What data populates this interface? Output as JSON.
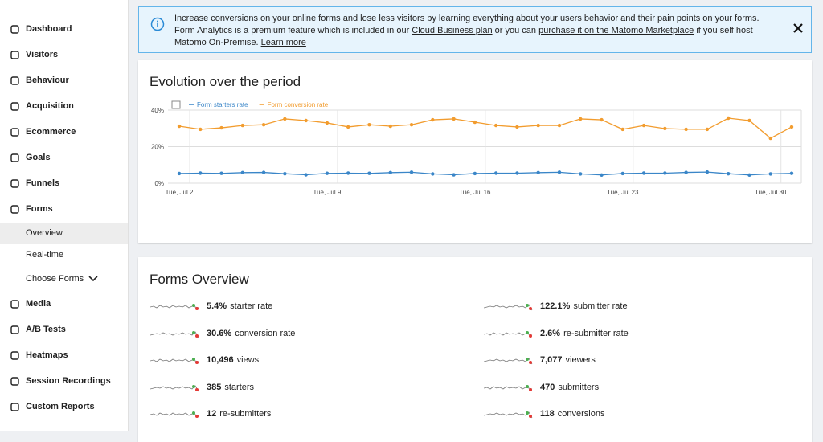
{
  "sidebar": {
    "items": [
      "Dashboard",
      "Visitors",
      "Behaviour",
      "Acquisition",
      "Ecommerce",
      "Goals",
      "Funnels",
      "Forms"
    ],
    "sub_items": [
      "Overview",
      "Real-time",
      "Choose Forms"
    ],
    "items_after": [
      "Media",
      "A/B Tests",
      "Heatmaps",
      "Session Recordings",
      "Custom Reports"
    ]
  },
  "notice": {
    "parts": [
      {
        "text": "Increase conversions on your online forms and lose less visitors by learning everything about your users behavior and their pain points on your forms. Form Analytics is a premium feature which is included in our "
      },
      {
        "link": "Cloud Business plan"
      },
      {
        "text": " or you can "
      },
      {
        "link": "purchase it on the Matomo Marketplace"
      },
      {
        "text": " if you self host Matomo On-Premise. "
      },
      {
        "link": "Learn more"
      }
    ]
  },
  "chart_data": {
    "type": "line",
    "title": "Evolution over the period",
    "categories": [
      "Tue, Jul 2",
      null,
      null,
      null,
      null,
      null,
      null,
      "Tue, Jul 9",
      null,
      null,
      null,
      null,
      null,
      null,
      "Tue, Jul 16",
      null,
      null,
      null,
      null,
      null,
      null,
      "Tue, Jul 23",
      null,
      null,
      null,
      null,
      null,
      null,
      "Tue, Jul 30",
      null
    ],
    "series": [
      {
        "name": "Form starters rate",
        "color": "#3a86c8",
        "values": [
          5.3,
          5.5,
          5.4,
          5.8,
          5.9,
          5.2,
          4.6,
          5.4,
          5.5,
          5.4,
          5.8,
          6,
          5.1,
          4.6,
          5.3,
          5.5,
          5.5,
          5.8,
          6,
          5.1,
          4.5,
          5.3,
          5.5,
          5.5,
          5.9,
          6.1,
          5.2,
          4.5,
          5.1,
          5.4
        ]
      },
      {
        "name": "Form conversion rate",
        "color": "#f29c2e",
        "values": [
          31.2,
          29.5,
          30.3,
          31.6,
          32,
          35.2,
          34.3,
          33,
          30.8,
          32,
          31.2,
          32,
          34.7,
          35.2,
          33.4,
          31.6,
          30.8,
          31.6,
          31.6,
          35.2,
          34.7,
          29.5,
          31.6,
          29.9,
          29.5,
          29.5,
          35.6,
          34.3,
          24.6,
          30.8
        ]
      }
    ],
    "ylim": [
      0,
      40
    ],
    "yticks": [
      {
        "value": 0,
        "label": "0%"
      },
      {
        "value": 20,
        "label": "20%"
      },
      {
        "value": 40,
        "label": "40%"
      }
    ],
    "grid": true
  },
  "overview": {
    "title": "Forms Overview",
    "metrics": [
      {
        "value": "5.4%",
        "label": "starter rate"
      },
      {
        "value": "30.6%",
        "label": "conversion rate"
      },
      {
        "value": "10,496",
        "label": "views"
      },
      {
        "value": "385",
        "label": "starters"
      },
      {
        "value": "12",
        "label": "re-submitters"
      },
      {
        "value": "122.1%",
        "label": "submitter rate"
      },
      {
        "value": "2.6%",
        "label": "re-submitter rate"
      },
      {
        "value": "7,077",
        "label": "viewers"
      },
      {
        "value": "470",
        "label": "submitters"
      },
      {
        "value": "118",
        "label": "conversions"
      }
    ]
  }
}
